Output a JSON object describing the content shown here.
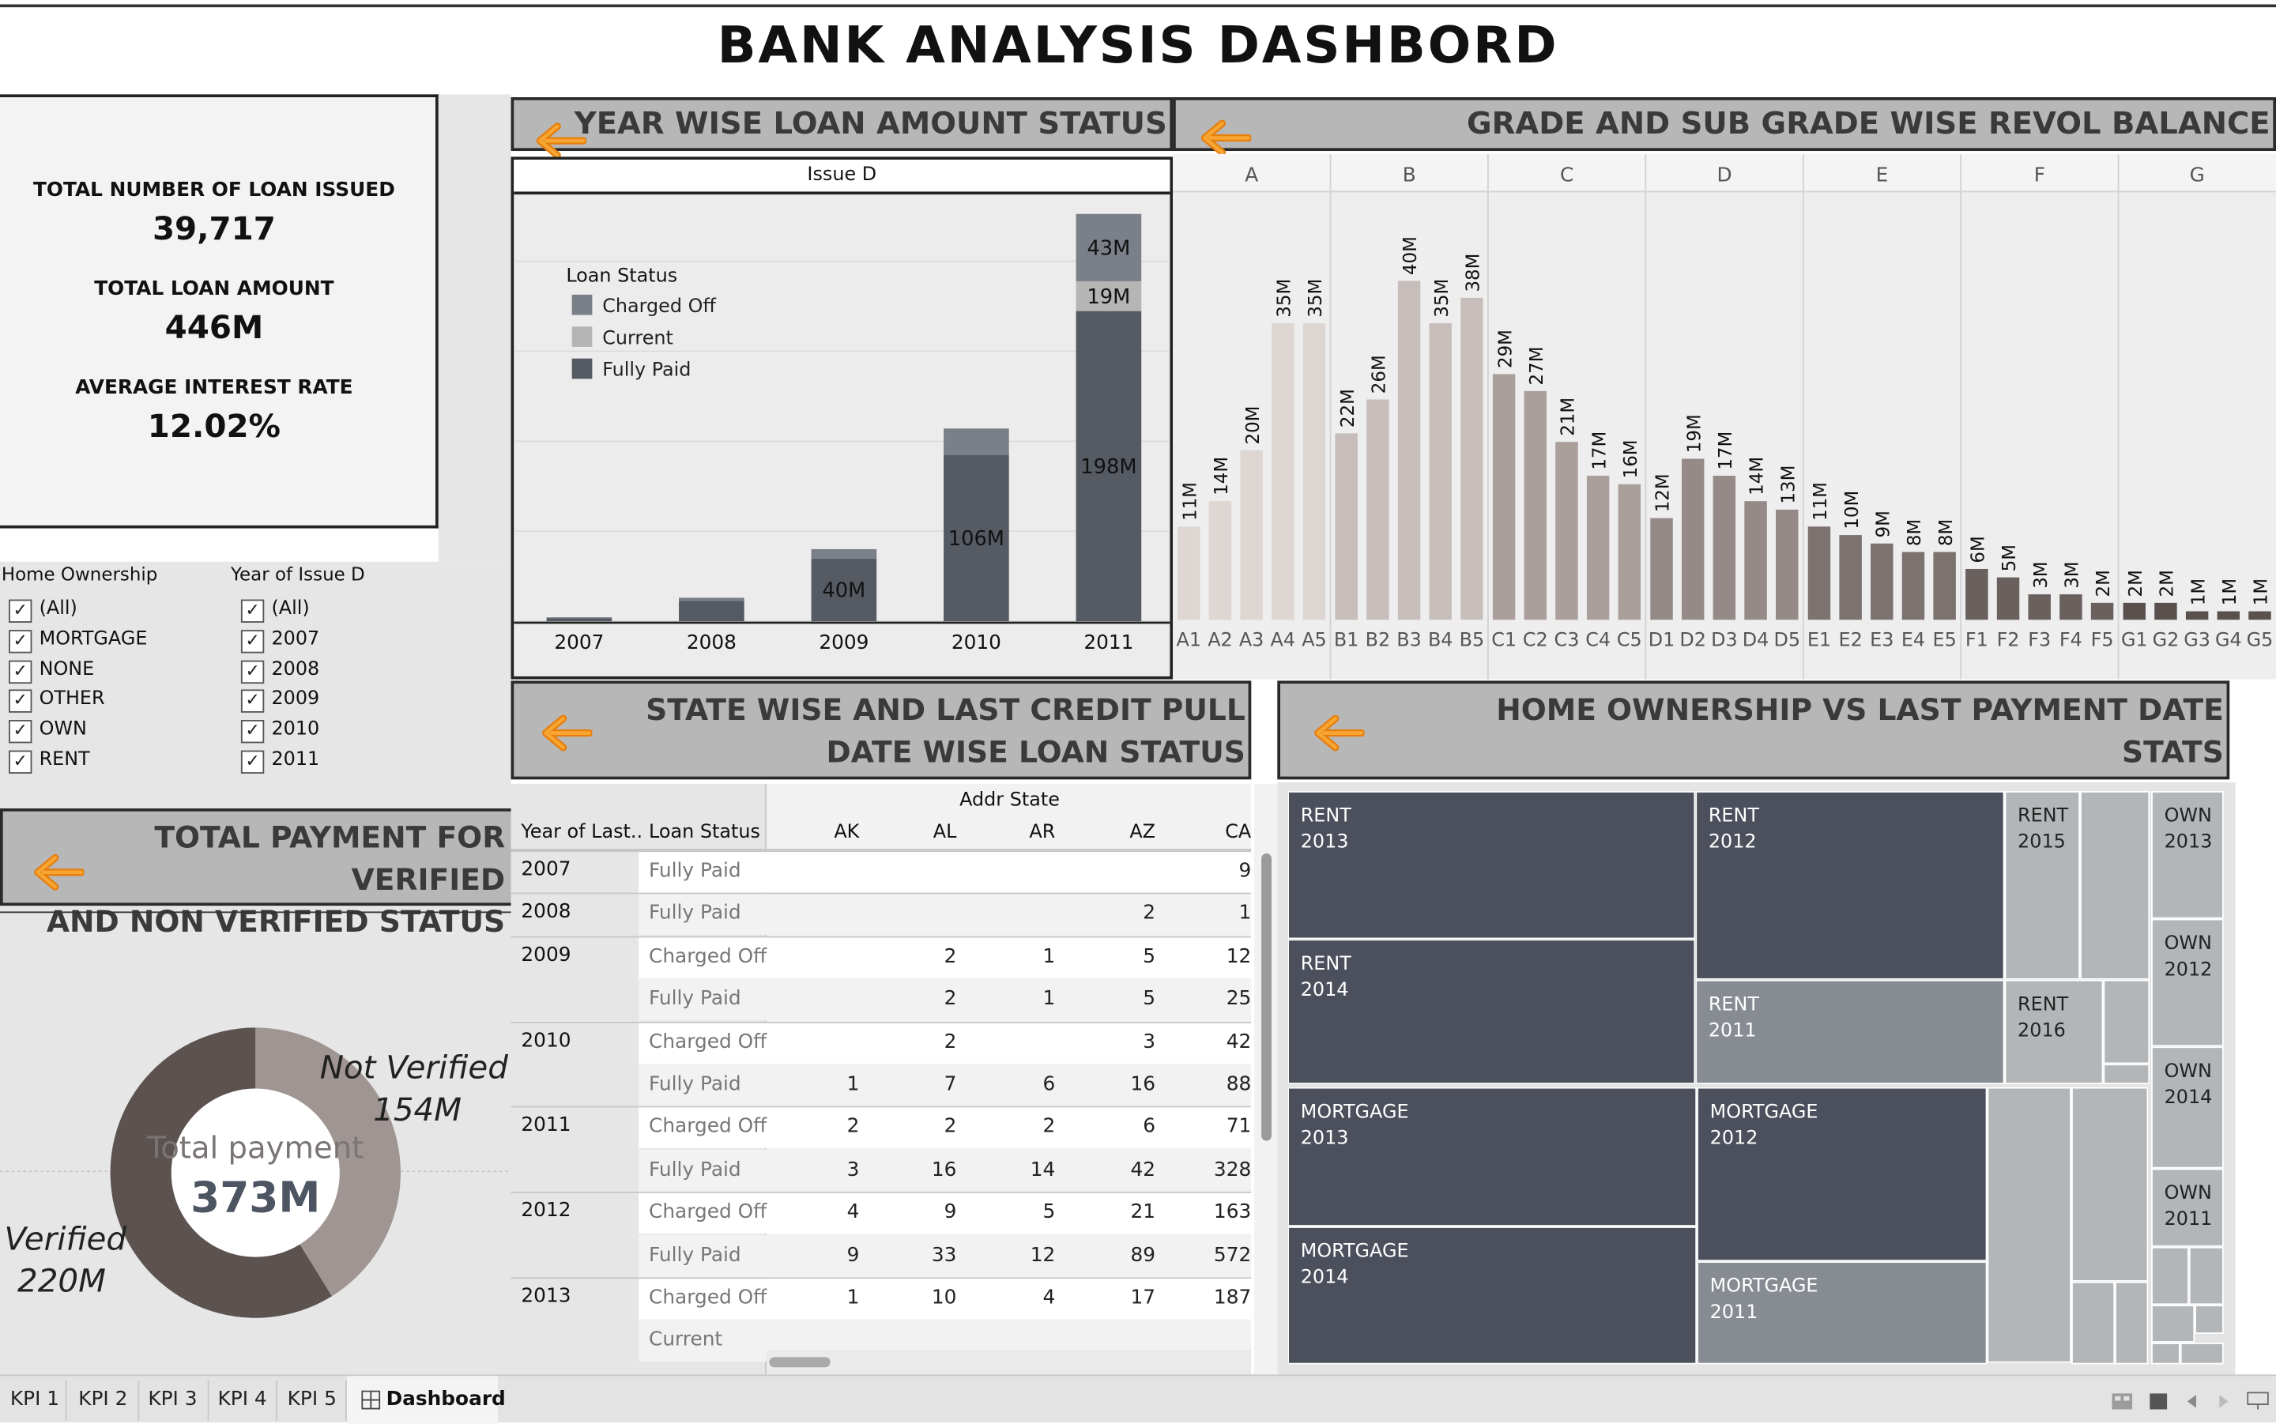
{
  "title": "BANK ANALYSIS DASHBORD",
  "kpis": [
    {
      "label": "TOTAL NUMBER OF LOAN ISSUED",
      "value": "39,717"
    },
    {
      "label": "TOTAL LOAN AMOUNT",
      "value": "446M"
    },
    {
      "label": "AVERAGE INTEREST RATE",
      "value": "12.02%"
    }
  ],
  "banners": {
    "year_wise": "YEAR  WISE  LOAN  AMOUNT STATUS",
    "grade": "GRADE AND SUB GRADE WISE REVOL BALANCE",
    "state_line1": "STATE WISE AND LAST CREDIT PULL",
    "state_line2": "DATE WISE LOAN STATUS",
    "home_line1": "HOME OWNERSHIP VS LAST PAYMENT DATE",
    "home_line2": "STATS",
    "payment_line1": "TOTAL PAYMENT FOR VERIFIED",
    "payment_line2": "AND NON VERIFIED STATUS"
  },
  "filters": {
    "home_ownership": {
      "title": "Home Ownership",
      "items": [
        "(All)",
        "MORTGAGE",
        "NONE",
        "OTHER",
        "OWN",
        "RENT"
      ]
    },
    "year_of_issue": {
      "title": "Year of Issue D",
      "items": [
        "(All)",
        "2007",
        "2008",
        "2009",
        "2010",
        "2011"
      ]
    }
  },
  "chart_data": [
    {
      "type": "bar",
      "stacked": true,
      "header": "Issue D",
      "categories": [
        "2007",
        "2008",
        "2009",
        "2010",
        "2011"
      ],
      "legend_title": "Loan Status",
      "series": [
        {
          "name": "Fully Paid",
          "values": [
            2,
            13,
            40,
            106,
            198
          ],
          "color": "#555a63"
        },
        {
          "name": "Current",
          "values": [
            0,
            0,
            0,
            0,
            19
          ],
          "color": "#b5b5b5"
        },
        {
          "name": "Charged Off",
          "values": [
            0.5,
            2,
            6,
            17,
            43
          ],
          "color": "#7a7f88"
        }
      ],
      "data_labels": {
        "2009": "40M",
        "2010": "106M",
        "2011": [
          "198M",
          "19M",
          "43M"
        ]
      },
      "ylim": [
        0,
        265
      ]
    },
    {
      "type": "bar",
      "groups": [
        "A",
        "B",
        "C",
        "D",
        "E",
        "F",
        "G"
      ],
      "categories": [
        "A1",
        "A2",
        "A3",
        "A4",
        "A5",
        "B1",
        "B2",
        "B3",
        "B4",
        "B5",
        "C1",
        "C2",
        "C3",
        "C4",
        "C5",
        "D1",
        "D2",
        "D3",
        "D4",
        "D5",
        "E1",
        "E2",
        "E3",
        "E4",
        "E5",
        "F1",
        "F2",
        "F3",
        "F4",
        "F5",
        "G1",
        "G2",
        "G3",
        "G4",
        "G5"
      ],
      "values": [
        11,
        14,
        20,
        35,
        35,
        22,
        26,
        40,
        35,
        38,
        29,
        27,
        21,
        17,
        16,
        12,
        19,
        17,
        14,
        13,
        11,
        10,
        9,
        8,
        8,
        6,
        5,
        3,
        3,
        2,
        2,
        2,
        1,
        1,
        1
      ],
      "labels": [
        "11M",
        "14M",
        "20M",
        "35M",
        "35M",
        "22M",
        "26M",
        "40M",
        "35M",
        "38M",
        "29M",
        "27M",
        "21M",
        "17M",
        "16M",
        "12M",
        "19M",
        "17M",
        "14M",
        "13M",
        "11M",
        "10M",
        "9M",
        "8M",
        "8M",
        "6M",
        "5M",
        "3M",
        "3M",
        "2M",
        "2M",
        "2M",
        "1M",
        "1M",
        "1M"
      ],
      "ylim": [
        0,
        43
      ]
    },
    {
      "type": "pie",
      "donut": true,
      "center_label": "Total payment",
      "center_value": "373M",
      "slices": [
        {
          "name": "Verified",
          "value": 220,
          "label": "220M",
          "color": "#5c5350"
        },
        {
          "name": "Not Verified",
          "value": 154,
          "label": "154M",
          "color": "#9f9592"
        }
      ]
    },
    {
      "type": "table",
      "column_group": "Addr State",
      "row_headers": [
        "Year of Last..",
        "Loan Status"
      ],
      "columns": [
        "AK",
        "AL",
        "AR",
        "AZ",
        "CA"
      ],
      "rows": [
        {
          "year": "2007",
          "status": "Fully Paid",
          "cells": [
            "",
            "",
            "",
            "",
            "9"
          ]
        },
        {
          "year": "2008",
          "status": "Fully Paid",
          "cells": [
            "",
            "",
            "",
            "2",
            "1"
          ]
        },
        {
          "year": "2009",
          "status": "Charged Off",
          "cells": [
            "",
            "2",
            "1",
            "5",
            "12"
          ]
        },
        {
          "year": "",
          "status": "Fully Paid",
          "cells": [
            "",
            "2",
            "1",
            "5",
            "25"
          ]
        },
        {
          "year": "2010",
          "status": "Charged Off",
          "cells": [
            "",
            "2",
            "",
            "3",
            "42"
          ]
        },
        {
          "year": "",
          "status": "Fully Paid",
          "cells": [
            "1",
            "7",
            "6",
            "16",
            "88"
          ]
        },
        {
          "year": "2011",
          "status": "Charged Off",
          "cells": [
            "2",
            "2",
            "2",
            "6",
            "71"
          ]
        },
        {
          "year": "",
          "status": "Fully Paid",
          "cells": [
            "3",
            "16",
            "14",
            "42",
            "328"
          ]
        },
        {
          "year": "2012",
          "status": "Charged Off",
          "cells": [
            "4",
            "9",
            "5",
            "21",
            "163"
          ]
        },
        {
          "year": "",
          "status": "Fully Paid",
          "cells": [
            "9",
            "33",
            "12",
            "89",
            "572"
          ]
        },
        {
          "year": "2013",
          "status": "Charged Off",
          "cells": [
            "1",
            "10",
            "4",
            "17",
            "187"
          ]
        },
        {
          "year": "",
          "status": "Current",
          "cells": [
            "",
            "",
            "",
            "",
            ""
          ]
        }
      ]
    }
  ],
  "treemap": {
    "dark": "#4b505c",
    "mid": "#878c93",
    "light": "#b3b6b8",
    "tiles": [
      {
        "l1": "RENT",
        "l2": "2013",
        "shade": "dark"
      },
      {
        "l1": "RENT",
        "l2": "2014",
        "shade": "dark"
      },
      {
        "l1": "RENT",
        "l2": "2012",
        "shade": "dark"
      },
      {
        "l1": "RENT",
        "l2": "2011",
        "shade": "mid"
      },
      {
        "l1": "RENT",
        "l2": "2015",
        "shade": "light"
      },
      {
        "l1": "RENT",
        "l2": "2016",
        "shade": "light"
      },
      {
        "l1": "MORTGAGE",
        "l2": "2013",
        "shade": "dark"
      },
      {
        "l1": "MORTGAGE",
        "l2": "2014",
        "shade": "dark"
      },
      {
        "l1": "MORTGAGE",
        "l2": "2012",
        "shade": "dark"
      },
      {
        "l1": "MORTGAGE",
        "l2": "2011",
        "shade": "mid"
      },
      {
        "l1": "OWN",
        "l2": "2013",
        "shade": "light"
      },
      {
        "l1": "OWN",
        "l2": "2012",
        "shade": "light"
      },
      {
        "l1": "OWN",
        "l2": "2014",
        "shade": "light"
      },
      {
        "l1": "OWN",
        "l2": "2011",
        "shade": "light"
      }
    ]
  },
  "tabs": [
    "KPI 1",
    "KPI 2",
    "KPI 3",
    "KPI 4",
    "KPI 5",
    "Dashboard"
  ],
  "active_tab": "Dashboard"
}
